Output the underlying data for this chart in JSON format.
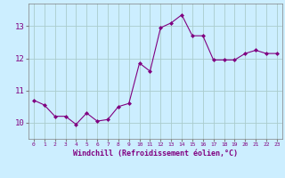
{
  "x": [
    0,
    1,
    2,
    3,
    4,
    5,
    6,
    7,
    8,
    9,
    10,
    11,
    12,
    13,
    14,
    15,
    16,
    17,
    18,
    19,
    20,
    21,
    22,
    23
  ],
  "y": [
    10.7,
    10.55,
    10.2,
    10.2,
    9.95,
    10.3,
    10.05,
    10.1,
    10.5,
    10.6,
    11.85,
    11.6,
    12.95,
    13.1,
    13.35,
    12.7,
    12.7,
    11.95,
    11.95,
    11.95,
    12.15,
    12.25,
    12.15,
    12.15
  ],
  "line_color": "#800080",
  "bg_color": "#cceeff",
  "grid_color": "#aacccc",
  "xlabel": "Windchill (Refroidissement éolien,°C)",
  "ylim": [
    9.5,
    13.7
  ],
  "yticks": [
    10,
    11,
    12,
    13
  ],
  "xticks": [
    0,
    1,
    2,
    3,
    4,
    5,
    6,
    7,
    8,
    9,
    10,
    11,
    12,
    13,
    14,
    15,
    16,
    17,
    18,
    19,
    20,
    21,
    22,
    23
  ],
  "label_color": "#800080",
  "tick_color": "#800080",
  "spine_color": "#808080",
  "marker_size": 2.0,
  "line_width": 0.8,
  "xlabel_fontsize": 6.0,
  "xtick_fontsize": 4.5,
  "ytick_fontsize": 6.5
}
